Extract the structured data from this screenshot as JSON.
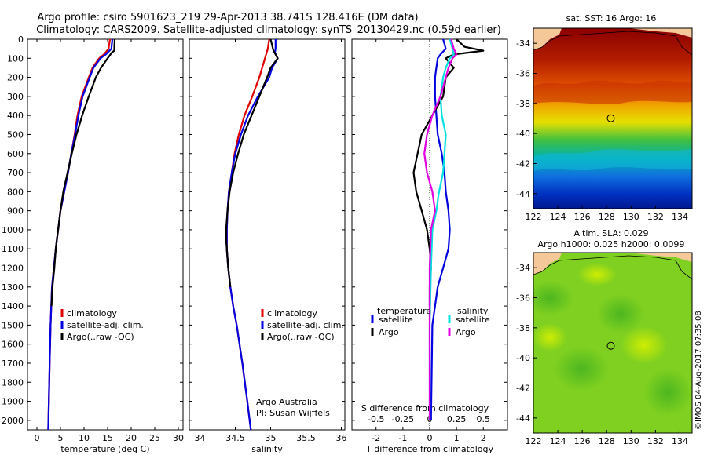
{
  "header": {
    "line1": "Argo profile: csiro 5901623_219 29-Apr-2013 38.741S 128.416E (DM data)",
    "line2": "Climatology: CARS2009. Satellite-adjusted climatology: synTS_20130429.nc (0.59d earlier)"
  },
  "annotations": {
    "credit1": "Argo Australia",
    "credit2": "PI: Susan Wijffels",
    "timestamp": "©IMOS 04-Aug-2017 07:35:08",
    "sst_title": "sat. SST: 16 Argo: 16",
    "sla_title1": "Altim. SLA: 0.029",
    "sla_title2": "Argo h1000: 0.025 h2000: 0.0099"
  },
  "colors": {
    "climatology": "#e00000",
    "satellite": "#0000e0",
    "argo": "#000000",
    "satellite_salinity": "#00e0e0",
    "argo_salinity": "#e000e0",
    "land": "#f5c89a"
  },
  "chart_data": [
    {
      "type": "line",
      "xlabel": "temperature (deg C)",
      "ylabel": "",
      "xlim": [
        -2,
        31
      ],
      "ylim": [
        2050,
        0
      ],
      "xticks": [
        0,
        5,
        10,
        15,
        20,
        25,
        30
      ],
      "yticks": [
        0,
        100,
        200,
        300,
        400,
        500,
        600,
        700,
        800,
        900,
        1000,
        1100,
        1200,
        1300,
        1400,
        1500,
        1600,
        1700,
        1800,
        1900,
        2000
      ],
      "legend": [
        "climatology",
        "satellite-adj. clim.",
        "Argo(..raw -QC)"
      ],
      "series": [
        {
          "name": "climatology",
          "color": "#e00000",
          "depth": [
            0,
            50,
            80,
            100,
            150,
            200,
            300,
            400,
            500,
            600,
            700,
            800,
            900,
            1000,
            1100,
            1200,
            1300,
            1500,
            1700,
            2000,
            2050
          ],
          "x": [
            15.5,
            15.2,
            14.2,
            13.2,
            11.8,
            11.0,
            9.5,
            8.6,
            8.0,
            7.3,
            6.6,
            5.8,
            5.0,
            4.5,
            4.0,
            3.6,
            3.2,
            2.9,
            2.7,
            2.45,
            2.4
          ]
        },
        {
          "name": "satellite-adj. clim.",
          "color": "#0000e0",
          "depth": [
            0,
            50,
            80,
            100,
            150,
            200,
            300,
            400,
            500,
            600,
            700,
            800,
            900,
            1000,
            1100,
            1200,
            1300,
            1500,
            1700,
            2000,
            2050
          ],
          "x": [
            16.0,
            15.8,
            14.6,
            13.5,
            12.0,
            11.2,
            9.7,
            8.8,
            8.1,
            7.3,
            6.6,
            5.8,
            5.0,
            4.5,
            4.0,
            3.6,
            3.2,
            2.9,
            2.7,
            2.45,
            2.4
          ]
        },
        {
          "name": "Argo(..raw -QC)",
          "color": "#000000",
          "depth": [
            0,
            60,
            70,
            100,
            150,
            200,
            300,
            400,
            500,
            600,
            700,
            800,
            900,
            1000,
            1100,
            1200,
            1300,
            1400
          ],
          "x": [
            16.5,
            16.4,
            15.9,
            15.0,
            13.6,
            12.5,
            11.0,
            9.6,
            8.4,
            7.4,
            6.5,
            5.6,
            5.0,
            4.5,
            4.0,
            3.7,
            3.3,
            3.1
          ]
        }
      ]
    },
    {
      "type": "line",
      "xlabel": "salinity",
      "ylabel": "",
      "xlim": [
        33.85,
        36.05
      ],
      "ylim": [
        2050,
        0
      ],
      "xticks": [
        34,
        34.5,
        35,
        35.5,
        36
      ],
      "legend": [
        "climatology",
        "satellite-adj. clim.",
        "Argo(..raw -QC)"
      ],
      "series": [
        {
          "name": "climatology",
          "color": "#e00000",
          "depth": [
            0,
            50,
            100,
            150,
            200,
            300,
            400,
            500,
            600,
            700,
            800,
            900,
            1000,
            1100,
            1200,
            1300,
            1400,
            1500,
            1700,
            1900,
            2050
          ],
          "x": [
            34.98,
            34.96,
            34.92,
            34.88,
            34.84,
            34.74,
            34.63,
            34.55,
            34.49,
            34.45,
            34.41,
            34.39,
            34.38,
            34.38,
            34.4,
            34.43,
            34.47,
            34.52,
            34.6,
            34.67,
            34.72
          ]
        },
        {
          "name": "satellite-adj. clim.",
          "color": "#0000e0",
          "depth": [
            0,
            50,
            70,
            100,
            150,
            200,
            300,
            400,
            500,
            600,
            700,
            800,
            900,
            1000,
            1100,
            1200,
            1300,
            1400,
            1500,
            1700,
            1900,
            2050
          ],
          "x": [
            35.07,
            35.07,
            35.06,
            35.1,
            35.02,
            34.98,
            34.82,
            34.68,
            34.58,
            34.5,
            34.45,
            34.41,
            34.39,
            34.38,
            34.38,
            34.4,
            34.43,
            34.47,
            34.52,
            34.6,
            34.67,
            34.72
          ]
        },
        {
          "name": "Argo(..raw -QC)",
          "color": "#000000",
          "depth": [
            0,
            60,
            80,
            100,
            150,
            200,
            300,
            400,
            500,
            600,
            700,
            800,
            900,
            1000,
            1050,
            1100,
            1200,
            1300
          ],
          "x": [
            35.0,
            35.04,
            35.07,
            35.1,
            35.0,
            34.95,
            34.84,
            34.73,
            34.62,
            34.54,
            34.47,
            34.42,
            34.39,
            34.37,
            34.37,
            34.38,
            34.4,
            34.43
          ]
        }
      ]
    },
    {
      "type": "line",
      "xlabel": "T difference from climatology",
      "xlabel_top": "S difference from climatology",
      "ylabel": "",
      "xlim": [
        -2.9,
        2.9
      ],
      "ylim": [
        2050,
        0
      ],
      "xticks": [
        -2,
        -1,
        0,
        1,
        2
      ],
      "xticks_top": [
        -0.5,
        -0.25,
        0,
        0.25,
        0.5
      ],
      "legend_title_left": "temperature",
      "legend_title_right": "salinity",
      "legend": [
        "satellite",
        "Argo",
        "satellite",
        "Argo"
      ],
      "series": [
        {
          "name": "satellite",
          "group": "temperature",
          "color": "#0000e0",
          "depth": [
            0,
            50,
            80,
            100,
            150,
            200,
            300,
            400,
            500,
            600,
            700,
            800,
            900,
            1000,
            1100,
            1200,
            1300,
            1500,
            2000
          ],
          "x": [
            0.5,
            0.6,
            0.4,
            0.3,
            0.25,
            0.2,
            0.2,
            0.25,
            0.3,
            0.45,
            0.55,
            0.6,
            0.7,
            0.75,
            0.7,
            0.5,
            0.3,
            0.1,
            0.05
          ]
        },
        {
          "name": "Argo",
          "group": "temperature",
          "color": "#000000",
          "depth": [
            0,
            40,
            60,
            80,
            100,
            150,
            200,
            300,
            400,
            500,
            600,
            700,
            800,
            900,
            1000,
            1100,
            1200,
            1300,
            1400
          ],
          "x": [
            1.0,
            1.3,
            2.0,
            0.9,
            0.6,
            0.9,
            0.6,
            0.5,
            0.1,
            -0.3,
            -0.45,
            -0.6,
            -0.5,
            -0.3,
            -0.1,
            0.0,
            0.05,
            0.0,
            0.0
          ]
        },
        {
          "name": "satellite",
          "group": "salinity",
          "color": "#00e0e0",
          "depth": [
            0,
            50,
            80,
            100,
            150,
            200,
            300,
            400,
            500,
            600,
            700,
            800,
            900,
            1000,
            1200,
            1500,
            2000
          ],
          "x": [
            0.75,
            0.85,
            0.9,
            0.75,
            0.6,
            0.5,
            0.4,
            0.45,
            0.6,
            0.55,
            0.5,
            0.35,
            0.25,
            0.1,
            0.05,
            0.0,
            0.0
          ]
        },
        {
          "name": "Argo",
          "group": "salinity",
          "color": "#e000e0",
          "depth": [
            0,
            50,
            80,
            100,
            150,
            200,
            300,
            400,
            500,
            600,
            700,
            800,
            900,
            1000,
            1200,
            1500,
            2000
          ],
          "x": [
            0.8,
            0.9,
            1.0,
            0.85,
            0.7,
            0.6,
            0.4,
            0.1,
            -0.1,
            -0.2,
            -0.1,
            0.1,
            0.2,
            0.05,
            0.0,
            0.0,
            0.0
          ]
        }
      ]
    },
    {
      "type": "heatmap",
      "title": "sat. SST: 16 Argo: 16",
      "xlim": [
        122,
        135
      ],
      "ylim": [
        -45,
        -33
      ],
      "xticks": [
        122,
        124,
        126,
        128,
        130,
        132,
        134
      ],
      "yticks": [
        -34,
        -36,
        -38,
        -40,
        -42,
        -44
      ],
      "marker": {
        "lon": 128.416,
        "lat": -38.741
      }
    },
    {
      "type": "heatmap",
      "title": "Altim. SLA: 0.029",
      "subtitle": "Argo h1000: 0.025 h2000: 0.0099",
      "xlim": [
        122,
        135
      ],
      "ylim": [
        -45,
        -33
      ],
      "xticks": [
        122,
        124,
        126,
        128,
        130,
        132,
        134
      ],
      "yticks": [
        -34,
        -36,
        -38,
        -40,
        -42,
        -44
      ],
      "marker": {
        "lon": 128.416,
        "lat": -38.741
      }
    }
  ]
}
